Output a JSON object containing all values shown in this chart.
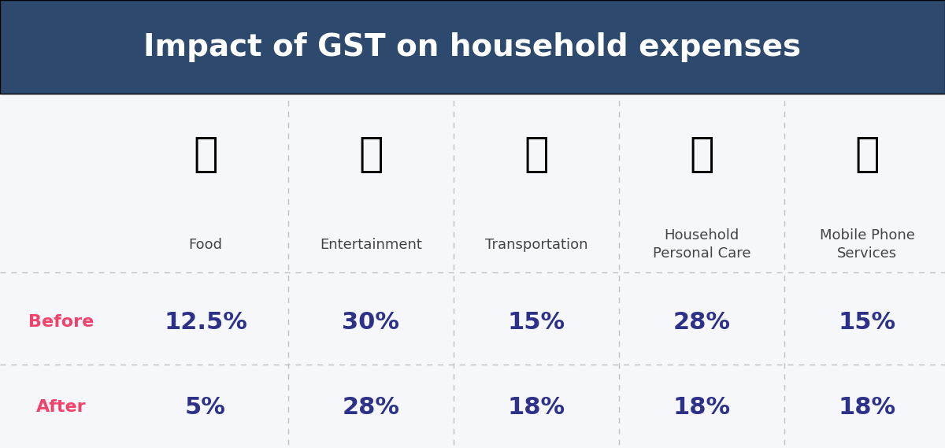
{
  "title": "Impact of GST on household expenses",
  "title_bg_color": "#2d4a6e",
  "title_text_color": "#ffffff",
  "body_bg_color": "#f5f7fa",
  "categories": [
    "Food",
    "Entertainment",
    "Transportation",
    "Household\nPersonal Care",
    "Mobile Phone\nServices"
  ],
  "before_values": [
    "12.5%",
    "30%",
    "15%",
    "28%",
    "15%"
  ],
  "after_values": [
    "5%",
    "28%",
    "18%",
    "18%",
    "18%"
  ],
  "before_label": "Before",
  "after_label": "After",
  "row_label_color": "#f0436b",
  "data_text_color": "#2d3188",
  "category_text_color": "#444444",
  "grid_line_color": "#bbbbbb",
  "data_fontsize": 22,
  "label_fontsize": 16,
  "category_fontsize": 13,
  "icon_fontsize": 38,
  "title_fontsize": 28
}
